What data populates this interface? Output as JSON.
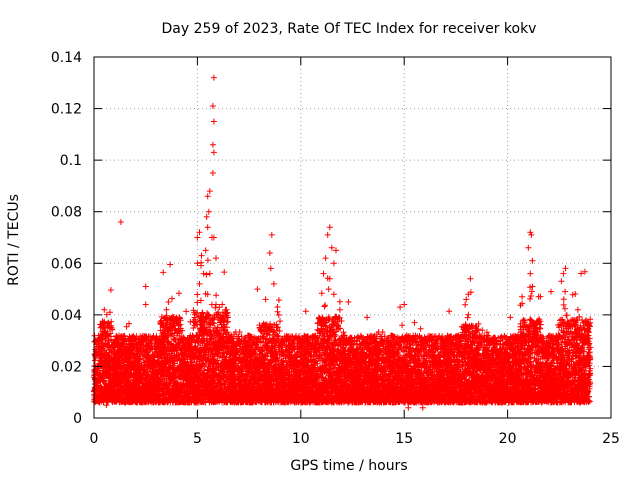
{
  "chart_data": {
    "type": "scatter",
    "title": "Day 259 of 2023, Rate Of TEC Index for receiver kokv",
    "xlabel": "GPS time / hours",
    "ylabel": "ROTI / TECUs",
    "xlim": [
      0,
      25
    ],
    "ylim": [
      0,
      0.14
    ],
    "xticks": [
      0,
      5,
      10,
      15,
      20,
      25
    ],
    "yticks": [
      0,
      0.02,
      0.04,
      0.06,
      0.08,
      0.1,
      0.12,
      0.14
    ],
    "xtick_labels": [
      "0",
      "5",
      "10",
      "15",
      "20",
      "25"
    ],
    "ytick_labels": [
      "0",
      "0.02",
      "0.04",
      "0.06",
      "0.08",
      "0.1",
      "0.12",
      "0.14"
    ],
    "grid": true,
    "marker": "+",
    "color": "#ff0000",
    "series": [
      {
        "name": "ROTI",
        "points": [
          [
            1.3,
            0.076
          ],
          [
            5.8,
            0.132
          ],
          [
            5.75,
            0.121
          ],
          [
            5.8,
            0.115
          ],
          [
            5.75,
            0.106
          ],
          [
            5.8,
            0.103
          ],
          [
            5.75,
            0.095
          ],
          [
            5.6,
            0.088
          ],
          [
            5.5,
            0.086
          ],
          [
            5.55,
            0.08
          ],
          [
            5.45,
            0.078
          ],
          [
            5.5,
            0.074
          ],
          [
            5.7,
            0.07
          ],
          [
            5.8,
            0.07
          ],
          [
            5.1,
            0.072
          ],
          [
            5.0,
            0.07
          ],
          [
            5.4,
            0.065
          ],
          [
            5.9,
            0.062
          ],
          [
            5.2,
            0.063
          ],
          [
            5.0,
            0.06
          ],
          [
            5.3,
            0.056
          ],
          [
            5.6,
            0.056
          ],
          [
            5.1,
            0.052
          ],
          [
            5.5,
            0.048
          ],
          [
            5.9,
            0.044
          ],
          [
            6.2,
            0.044
          ],
          [
            6.4,
            0.042
          ],
          [
            8.6,
            0.071
          ],
          [
            8.5,
            0.064
          ],
          [
            8.55,
            0.058
          ],
          [
            8.7,
            0.052
          ],
          [
            8.3,
            0.046
          ],
          [
            7.9,
            0.05
          ],
          [
            11.4,
            0.074
          ],
          [
            11.3,
            0.071
          ],
          [
            11.5,
            0.066
          ],
          [
            11.7,
            0.065
          ],
          [
            11.2,
            0.062
          ],
          [
            11.6,
            0.06
          ],
          [
            11.1,
            0.056
          ],
          [
            11.4,
            0.054
          ],
          [
            11.35,
            0.05
          ],
          [
            12.3,
            0.045
          ],
          [
            11.6,
            0.048
          ],
          [
            21.1,
            0.072
          ],
          [
            21.15,
            0.071
          ],
          [
            21.0,
            0.066
          ],
          [
            21.2,
            0.061
          ],
          [
            21.1,
            0.056
          ],
          [
            21.2,
            0.051
          ],
          [
            20.7,
            0.047
          ],
          [
            21.5,
            0.047
          ],
          [
            22.1,
            0.049
          ],
          [
            22.8,
            0.058
          ],
          [
            22.7,
            0.056
          ],
          [
            22.6,
            0.053
          ],
          [
            18.2,
            0.054
          ],
          [
            18.1,
            0.048
          ],
          [
            18.0,
            0.046
          ],
          [
            2.5,
            0.051
          ],
          [
            2.5,
            0.044
          ],
          [
            3.6,
            0.045
          ],
          [
            15.0,
            0.044
          ],
          [
            14.8,
            0.043
          ],
          [
            15.5,
            0.037
          ],
          [
            14.9,
            0.036
          ],
          [
            3.5,
            0.042
          ],
          [
            0.5,
            0.042
          ],
          [
            23.4,
            0.042
          ],
          [
            23.6,
            0.038
          ],
          [
            23.9,
            0.036
          ],
          [
            0.6,
            0.005
          ],
          [
            15.2,
            0.004
          ],
          [
            15.9,
            0.004
          ],
          [
            12.5,
            0.006
          ],
          [
            17.8,
            0.006
          ],
          [
            22.1,
            0.006
          ],
          [
            8.3,
            0.007
          ],
          [
            4.9,
            0.006
          ],
          [
            3.4,
            0.006
          ]
        ],
        "dense_band": {
          "x_range": [
            0,
            24
          ],
          "typical_min": 0.006,
          "typical_max": 0.032,
          "typical_center": 0.016,
          "sampling_interval_hours": 0.008,
          "point_density": 4
        }
      }
    ]
  }
}
